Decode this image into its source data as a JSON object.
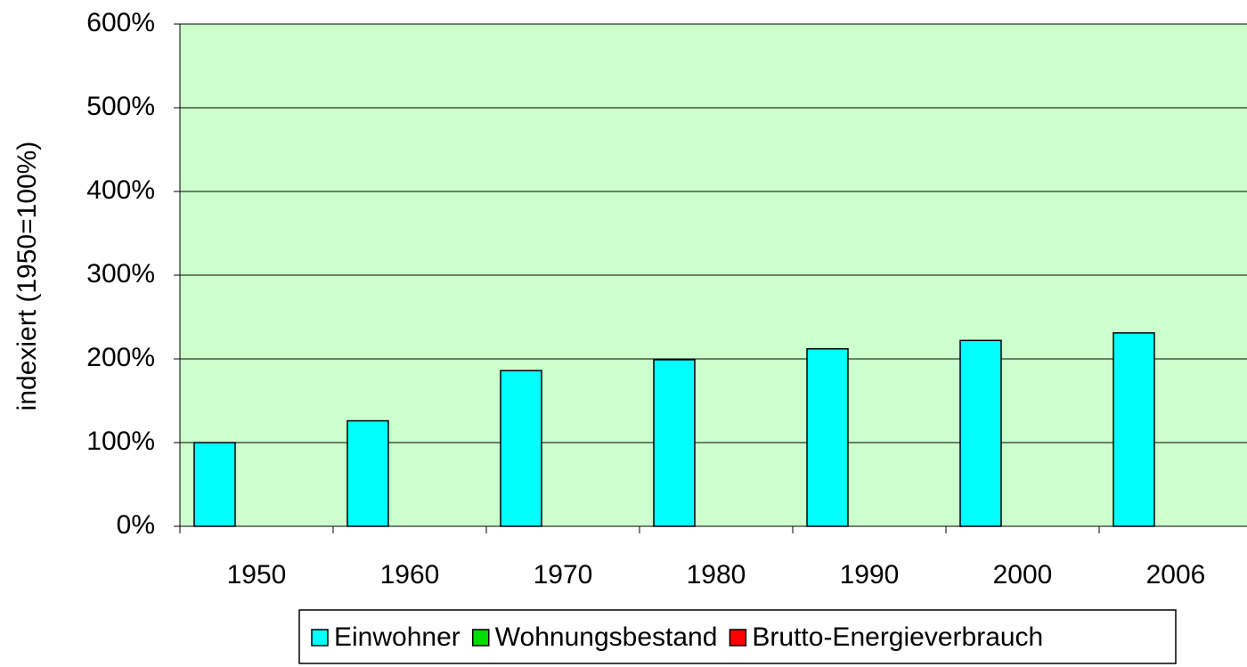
{
  "chart_data": {
    "type": "bar",
    "y_label": "indexiert (1950=100%)",
    "categories": [
      "1950",
      "1960",
      "1970",
      "1980",
      "1990",
      "2000",
      "2006"
    ],
    "series": [
      {
        "name": "Einwohner",
        "color": "#00ffff",
        "values": [
          100,
          126,
          186,
          199,
          212,
          222,
          231
        ]
      },
      {
        "name": "Wohnungsbestand",
        "color": "#00dd00",
        "values": [
          null,
          null,
          null,
          null,
          null,
          null,
          null
        ]
      },
      {
        "name": "Brutto-Energieverbrauch",
        "color": "#ff0000",
        "values": [
          null,
          null,
          null,
          null,
          null,
          null,
          null
        ]
      }
    ],
    "ylim": [
      0,
      600
    ],
    "yticks": [
      {
        "value": 0,
        "label": "0%"
      },
      {
        "value": 100,
        "label": "100%"
      },
      {
        "value": 200,
        "label": "200%"
      },
      {
        "value": 300,
        "label": "300%"
      },
      {
        "value": 400,
        "label": "400%"
      },
      {
        "value": 500,
        "label": "500%"
      },
      {
        "value": 600,
        "label": "600%"
      }
    ],
    "grid": true,
    "plot_background": "#ccffcc",
    "legend": "bottom"
  }
}
